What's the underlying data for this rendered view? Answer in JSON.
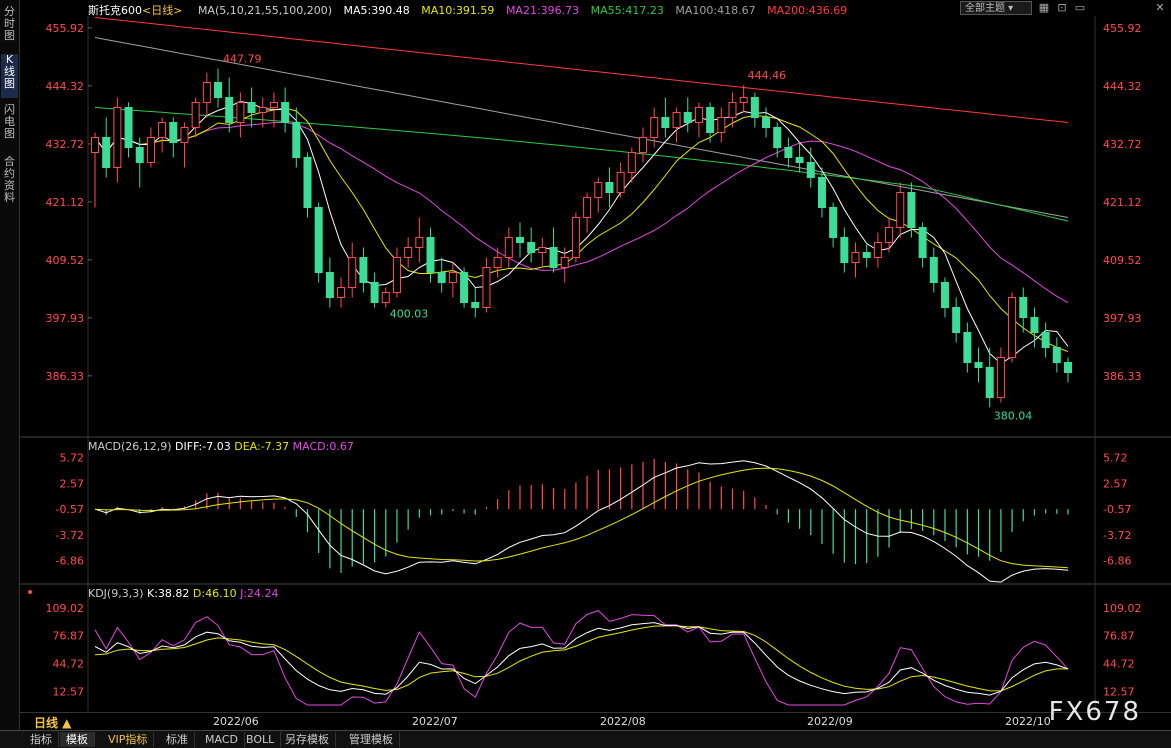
{
  "left_tabs": [
    "分时图",
    "K线图",
    "闪电图",
    "合约资料"
  ],
  "header": {
    "instrument": "斯托克600",
    "period_tag": "<日线>",
    "ma_label": "MA(5,10,21,55,100,200)",
    "ma": [
      {
        "text": "MA5:390.48",
        "color": "#ffffff"
      },
      {
        "text": "MA10:391.59",
        "color": "#e6e600"
      },
      {
        "text": "MA21:396.73",
        "color": "#e04be0"
      },
      {
        "text": "MA55:417.23",
        "color": "#2ecc40"
      },
      {
        "text": "MA100:418.67",
        "color": "#a0a0a0"
      },
      {
        "text": "MA200:436.69",
        "color": "#ff3b3b"
      }
    ],
    "dropdown": "全部主题",
    "icons": [
      "grid-icon",
      "lock-icon",
      "window-icon",
      "close-icon"
    ]
  },
  "price_axis": {
    "labels": [
      "455.92",
      "444.32",
      "432.72",
      "421.12",
      "409.52",
      "397.93",
      "386.33"
    ],
    "values": [
      455.92,
      444.32,
      432.72,
      421.12,
      409.52,
      397.93,
      386.33
    ],
    "min": 375.5,
    "max": 457.5
  },
  "annotations": {
    "high1": "447.79",
    "high2": "444.46",
    "low1": "400.03",
    "low2": "380.04"
  },
  "macd": {
    "header": "MACD(26,12,9)",
    "diff": "DIFF:-7.03",
    "dea": "DEA:-7.37",
    "macd": "MACD:0.67",
    "labels": [
      "5.72",
      "2.57",
      "-0.57",
      "-3.72",
      "-6.86"
    ],
    "values": [
      5.72,
      2.57,
      -0.57,
      -3.72,
      -6.86
    ],
    "min": -8.6,
    "max": 6.4
  },
  "kdj": {
    "header": "KDJ(9,3,3)",
    "k": "K:38.82",
    "d": "D:46.10",
    "j": "J:24.24",
    "labels": [
      "109.02",
      "76.87",
      "44.72",
      "12.57"
    ],
    "values": [
      109.02,
      76.87,
      44.72,
      12.57
    ],
    "min": -3,
    "max": 118
  },
  "timeline": {
    "period": "日线 ▲",
    "months": [
      "2022/06",
      "2022/07",
      "2022/08",
      "2022/09",
      "2022/10"
    ]
  },
  "bottom_tabs": [
    "指标",
    "模板",
    "VIP指标",
    "标准",
    "MACD",
    "BOLL",
    "另存模板",
    "管理模板"
  ],
  "watermark": "FX678",
  "colors": {
    "up": "#ff4d4d",
    "down": "#3ddc97",
    "ma5": "#ffffff",
    "ma10": "#e6e600",
    "ma21": "#e04be0",
    "ma55": "#2ecc40",
    "ma100": "#a0a0a0",
    "ma200": "#ff3b3b"
  },
  "chart_data": {
    "type": "candlestick",
    "candles_ohlc_approx": [
      [
        431,
        435,
        420,
        434
      ],
      [
        434,
        438,
        426,
        428
      ],
      [
        428,
        442,
        425,
        440
      ],
      [
        440,
        441,
        430,
        432
      ],
      [
        432,
        434,
        424,
        429
      ],
      [
        429,
        436,
        428,
        434
      ],
      [
        434,
        438,
        431,
        437
      ],
      [
        437,
        438,
        430,
        433
      ],
      [
        433,
        437,
        428,
        436
      ],
      [
        436,
        442,
        434,
        441
      ],
      [
        441,
        447,
        438,
        445
      ],
      [
        445,
        447.79,
        440,
        442
      ],
      [
        442,
        446,
        435,
        437
      ],
      [
        437,
        443,
        434,
        441
      ],
      [
        441,
        444,
        436,
        439
      ],
      [
        439,
        442,
        436,
        440
      ],
      [
        440,
        443,
        436,
        441
      ],
      [
        441,
        444,
        435,
        437
      ],
      [
        437,
        440,
        428,
        430
      ],
      [
        430,
        431,
        418,
        420
      ],
      [
        420,
        421,
        405,
        407
      ],
      [
        407,
        410,
        400,
        402
      ],
      [
        402,
        406,
        400,
        404
      ],
      [
        404,
        413,
        402,
        410
      ],
      [
        410,
        412,
        403,
        405
      ],
      [
        405,
        407,
        400,
        401
      ],
      [
        401,
        404,
        400.03,
        403
      ],
      [
        403,
        412,
        402,
        410
      ],
      [
        410,
        414,
        408,
        412
      ],
      [
        412,
        418,
        409,
        414
      ],
      [
        414,
        416,
        405,
        407
      ],
      [
        407,
        410,
        403,
        405
      ],
      [
        405,
        409,
        402,
        407
      ],
      [
        407,
        408,
        400,
        401
      ],
      [
        401,
        404,
        398,
        400
      ],
      [
        400,
        410,
        399,
        408
      ],
      [
        408,
        412,
        406,
        410
      ],
      [
        410,
        416,
        408,
        414
      ],
      [
        414,
        417,
        410,
        413
      ],
      [
        413,
        416,
        409,
        411
      ],
      [
        411,
        414,
        408,
        412
      ],
      [
        412,
        416,
        407,
        408
      ],
      [
        408,
        412,
        405,
        410
      ],
      [
        410,
        419,
        409,
        418
      ],
      [
        418,
        423,
        415,
        422
      ],
      [
        422,
        426,
        419,
        425
      ],
      [
        425,
        428,
        420,
        423
      ],
      [
        423,
        429,
        422,
        427
      ],
      [
        427,
        432,
        425,
        431
      ],
      [
        431,
        436,
        429,
        434
      ],
      [
        434,
        440,
        432,
        438
      ],
      [
        438,
        442,
        434,
        436
      ],
      [
        436,
        440,
        433,
        439
      ],
      [
        439,
        442,
        435,
        437
      ],
      [
        437,
        441,
        434,
        440
      ],
      [
        440,
        441,
        433,
        435
      ],
      [
        435,
        440,
        433,
        438
      ],
      [
        438,
        443,
        436,
        441
      ],
      [
        441,
        444.46,
        439,
        442
      ],
      [
        442,
        443,
        436,
        438
      ],
      [
        438,
        440,
        434,
        436
      ],
      [
        436,
        437,
        430,
        432
      ],
      [
        432,
        434,
        428,
        430
      ],
      [
        430,
        433,
        427,
        429
      ],
      [
        429,
        432,
        424,
        426
      ],
      [
        426,
        428,
        418,
        420
      ],
      [
        420,
        421,
        412,
        414
      ],
      [
        414,
        416,
        407,
        409
      ],
      [
        409,
        413,
        406,
        411
      ],
      [
        411,
        413,
        408,
        410
      ],
      [
        410,
        415,
        408,
        413
      ],
      [
        413,
        418,
        411,
        416
      ],
      [
        416,
        425,
        414,
        423
      ],
      [
        423,
        425,
        414,
        416
      ],
      [
        416,
        417,
        408,
        410
      ],
      [
        410,
        412,
        403,
        405
      ],
      [
        405,
        406,
        398,
        400
      ],
      [
        400,
        402,
        393,
        395
      ],
      [
        395,
        397,
        387,
        389
      ],
      [
        389,
        392,
        385,
        388
      ],
      [
        388,
        392,
        380.04,
        382
      ],
      [
        382,
        392,
        381,
        390
      ],
      [
        390,
        403,
        389,
        402
      ],
      [
        402,
        404,
        395,
        398
      ],
      [
        398,
        400,
        392,
        395
      ],
      [
        395,
        397,
        390,
        392
      ],
      [
        392,
        394,
        387,
        389
      ],
      [
        389,
        390,
        385,
        387
      ]
    ],
    "ma_series_latest": {
      "MA5": 390.48,
      "MA10": 391.59,
      "MA21": 396.73,
      "MA55": 417.23,
      "MA100": 418.67,
      "MA200": 436.69
    },
    "macd_latest": {
      "DIFF": -7.03,
      "DEA": -7.37,
      "MACD": 0.67
    },
    "kdj_latest": {
      "K": 38.82,
      "D": 46.1,
      "J": 24.24
    }
  }
}
